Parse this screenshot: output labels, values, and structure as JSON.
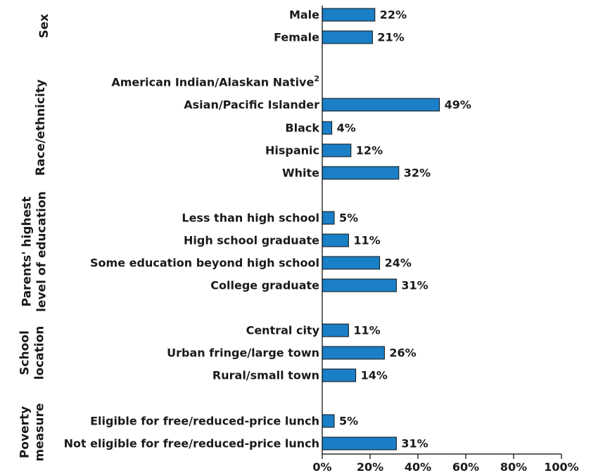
{
  "chart_data": {
    "type": "bar",
    "orientation": "horizontal",
    "bar_color": "#1a7fc6",
    "xlim": [
      0,
      100
    ],
    "x_ticks": [
      "0%",
      "20%",
      "40%",
      "60%",
      "80%",
      "100%"
    ],
    "groups": [
      {
        "label_lines": [
          "Sex"
        ],
        "categories": [
          {
            "label": "Male",
            "value": 22,
            "value_label": "22%"
          },
          {
            "label": "Female",
            "value": 21,
            "value_label": "21%"
          }
        ]
      },
      {
        "label_lines": [
          "Race/ethnicity"
        ],
        "categories": [
          {
            "label": "American Indian/Alaskan Native",
            "superscript": "2",
            "value": null,
            "value_label": ""
          },
          {
            "label": "Asian/Pacific Islander",
            "value": 49,
            "value_label": "49%"
          },
          {
            "label": "Black",
            "value": 4,
            "value_label": "4%"
          },
          {
            "label": "Hispanic",
            "value": 12,
            "value_label": "12%"
          },
          {
            "label": "White",
            "value": 32,
            "value_label": "32%"
          }
        ]
      },
      {
        "label_lines": [
          "Parents' highest",
          "level of education"
        ],
        "categories": [
          {
            "label": "Less than high school",
            "value": 5,
            "value_label": "5%"
          },
          {
            "label": "High school graduate",
            "value": 11,
            "value_label": "11%"
          },
          {
            "label": "Some education beyond high school",
            "value": 24,
            "value_label": "24%"
          },
          {
            "label": "College graduate",
            "value": 31,
            "value_label": "31%"
          }
        ]
      },
      {
        "label_lines": [
          "School",
          "location"
        ],
        "categories": [
          {
            "label": "Central city",
            "value": 11,
            "value_label": "11%"
          },
          {
            "label": "Urban fringe/large town",
            "value": 26,
            "value_label": "26%"
          },
          {
            "label": "Rural/small town",
            "value": 14,
            "value_label": "14%"
          }
        ]
      },
      {
        "label_lines": [
          "Poverty",
          "measure"
        ],
        "categories": [
          {
            "label": "Eligible for free/reduced-price lunch",
            "value": 5,
            "value_label": "5%"
          },
          {
            "label": "Not eligible for free/reduced-price lunch",
            "value": 31,
            "value_label": "31%"
          }
        ]
      }
    ]
  }
}
